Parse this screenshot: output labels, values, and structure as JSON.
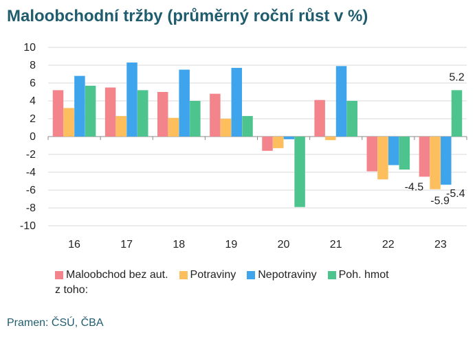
{
  "chart_data": {
    "type": "bar",
    "title": "Maloobchodní tržby (průměrný roční růst v %)",
    "categories": [
      "16",
      "17",
      "18",
      "19",
      "20",
      "21",
      "22",
      "23"
    ],
    "ylim": [
      -10,
      10
    ],
    "yticks": [
      10,
      8,
      6,
      4,
      2,
      0,
      -2,
      -4,
      -6,
      -8,
      -10
    ],
    "grid": true,
    "legend_position": "bottom",
    "series": [
      {
        "name": "Maloobchod bez aut.",
        "color": "#f4848c",
        "values": [
          5.2,
          5.5,
          5.0,
          4.8,
          -1.6,
          4.1,
          -3.9,
          -4.5
        ]
      },
      {
        "name": "Potraviny",
        "color": "#fdbe5e",
        "values": [
          3.2,
          2.3,
          2.1,
          2.0,
          -1.3,
          -0.4,
          -4.8,
          -5.9
        ]
      },
      {
        "name": "Nepotraviny",
        "color": "#3ea5ec",
        "values": [
          6.8,
          8.3,
          7.5,
          7.7,
          -0.3,
          7.9,
          -3.2,
          -5.4
        ]
      },
      {
        "name": "Poh. hmot",
        "color": "#4dc38d",
        "values": [
          5.7,
          5.2,
          4.0,
          2.3,
          -7.9,
          4.0,
          -3.7,
          5.2
        ]
      }
    ],
    "data_labels": [
      {
        "series": 3,
        "index": 7,
        "text": "5.2"
      },
      {
        "series": 0,
        "index": 7,
        "text": "-4.5"
      },
      {
        "series": 1,
        "index": 7,
        "text": "-5.9"
      },
      {
        "series": 2,
        "index": 7,
        "text": "-5.4"
      }
    ],
    "legend_note": "z toho:",
    "source": "Pramen: ČSÚ, ČBA"
  }
}
